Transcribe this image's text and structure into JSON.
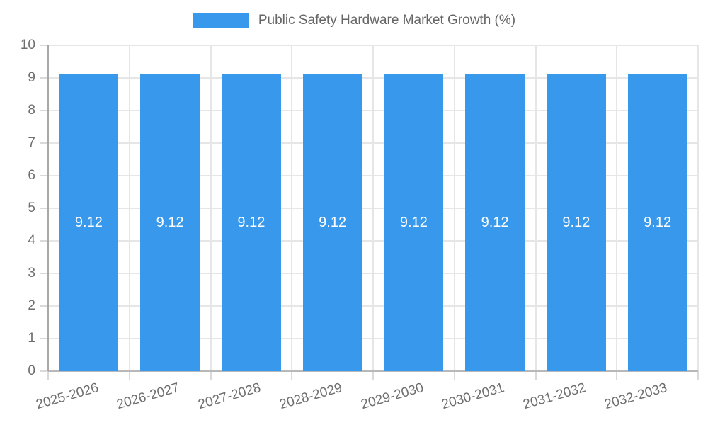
{
  "chart_data": {
    "type": "bar",
    "title": "Public Safety Hardware Market Growth (%)",
    "legend_position": "top",
    "categories": [
      "2025-2026",
      "2026-2027",
      "2027-2028",
      "2028-2029",
      "2029-2030",
      "2030-2031",
      "2031-2032",
      "2032-2033"
    ],
    "values": [
      9.12,
      9.12,
      9.12,
      9.12,
      9.12,
      9.12,
      9.12,
      9.12
    ],
    "data_labels": [
      "9.12",
      "9.12",
      "9.12",
      "9.12",
      "9.12",
      "9.12",
      "9.12",
      "9.12"
    ],
    "ylim": [
      0,
      10
    ],
    "ytick_step": 1,
    "ytick_labels": [
      "0",
      "1",
      "2",
      "3",
      "4",
      "5",
      "6",
      "7",
      "8",
      "9",
      "10"
    ],
    "grid": true,
    "xlabel": "",
    "ylabel": ""
  },
  "legend": {
    "label": "Public Safety Hardware Market Growth (%)"
  },
  "colors": {
    "bar": "#3899EC",
    "bar_label": "#FFFFFF",
    "grid": "#E6E6E6",
    "axis_line": "#A8A8A8",
    "baseline": "#B8B8B8",
    "tick_mark": "#D9D9D9",
    "tick_text": "#6E6E6E",
    "title_text": "#666666",
    "background": "#FFFFFF"
  }
}
